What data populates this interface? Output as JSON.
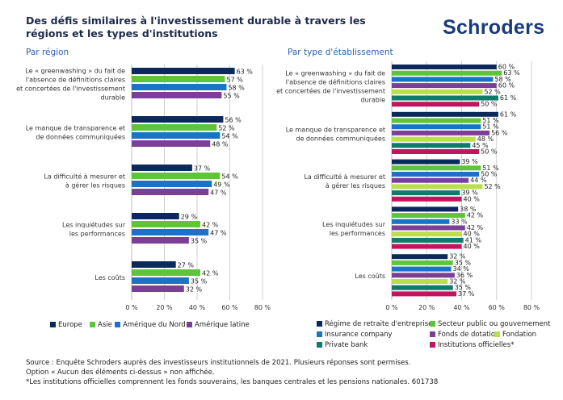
{
  "title": "Des défis similaires à l'investissement durable à travers les régions et les types d'institutions",
  "logo": "Schroders",
  "chart_data": [
    {
      "type": "bar",
      "orientation": "horizontal",
      "subtitle": "Par région",
      "categories": [
        "Le « greenwashing » du fait de l'absence de définitions claires et concertées de l'investissement durable",
        "Le manque de transparence et de données communiquées",
        "La difficulté à mesurer et à gérer les risques",
        "Les inquiétudes sur les performances",
        "Les coûts"
      ],
      "xlim": [
        0,
        80
      ],
      "ticks": [
        "0 %",
        "20 %",
        "40 %",
        "60 %",
        "80 %"
      ],
      "grid": true,
      "legend": "bottom",
      "series": [
        {
          "name": "Europe",
          "color": "#0b2a5b",
          "values": [
            63,
            56,
            37,
            29,
            27
          ]
        },
        {
          "name": "Asie",
          "color": "#5ec43a",
          "values": [
            57,
            52,
            54,
            42,
            42
          ]
        },
        {
          "name": "Amérique du Nord",
          "color": "#1a73c5",
          "values": [
            58,
            54,
            49,
            47,
            35
          ]
        },
        {
          "name": "Amérique latine",
          "color": "#7b3f98",
          "values": [
            55,
            48,
            47,
            35,
            32
          ]
        }
      ]
    },
    {
      "type": "bar",
      "orientation": "horizontal",
      "subtitle": "Par type d'établissement",
      "categories": [
        "Le « greenwashing » du fait de l'absence de définitions claires et concertées de l'investissement durable",
        "Le manque de transparence et de données communiquées",
        "La difficulté à mesurer et à gérer les risques",
        "Les inquiétudes sur les performances",
        "Les coûts"
      ],
      "xlim": [
        0,
        80
      ],
      "ticks": [
        "0 %",
        "20 %",
        "40 %",
        "60 %",
        "80 %"
      ],
      "grid": true,
      "legend": "bottom",
      "series": [
        {
          "name": "Régime de retraite d'entreprise",
          "color": "#0b2a5b",
          "values": [
            60,
            61,
            39,
            38,
            32
          ]
        },
        {
          "name": "Secteur public ou gouvernement",
          "color": "#5ec43a",
          "values": [
            63,
            51,
            51,
            42,
            35
          ]
        },
        {
          "name": "Insurance company",
          "color": "#1a73c5",
          "values": [
            58,
            51,
            50,
            33,
            34
          ]
        },
        {
          "name": "Fonds de dotation",
          "color": "#7b3f98",
          "values": [
            60,
            56,
            44,
            42,
            36
          ]
        },
        {
          "name": "Fondation",
          "color": "#b8e04a",
          "values": [
            52,
            48,
            52,
            40,
            32
          ]
        },
        {
          "name": "Private bank",
          "color": "#0e7b6b",
          "values": [
            61,
            45,
            39,
            41,
            35
          ]
        },
        {
          "name": "Institutions officielles*",
          "color": "#c4145f",
          "values": [
            50,
            50,
            40,
            40,
            37
          ]
        }
      ]
    }
  ],
  "left_labels": [
    [
      "Le « greenwashing » du fait de",
      "l'absence de définitions claires",
      "et concertées de l'investissement",
      "durable"
    ],
    [
      "Le manque de transparence et",
      "de données communiquées"
    ],
    [
      "La difficulté à mesurer et",
      "à gérer les risques"
    ],
    [
      "Les inquiétudes sur",
      "les performances"
    ],
    [
      "Les coûts"
    ]
  ],
  "footnotes": [
    "Source : Enquête Schroders auprès des investisseurs institutionnels de 2021. Plusieurs réponses sont permises.",
    "Option « Aucun des éléments ci-dessus » non affichée.",
    "*Les institutions officielles comprennent les fonds souverains, les banques centrales et les pensions nationales. 601738"
  ]
}
